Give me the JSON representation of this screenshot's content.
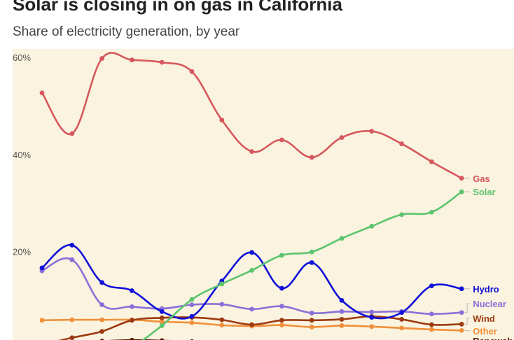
{
  "title": "Solar is closing in on gas in California",
  "subtitle": "Share of electricity generation, by year",
  "chart_data": {
    "type": "line",
    "ylim": [
      0,
      62
    ],
    "yticks": [
      {
        "value": 20,
        "label": "20%"
      },
      {
        "value": 40,
        "label": "40%"
      },
      {
        "value": 60,
        "label": "60%"
      }
    ],
    "grid": false,
    "legend": "inline labels at line ends (right)",
    "x": [
      0,
      1,
      2,
      3,
      4,
      5,
      6,
      7,
      8,
      9,
      10,
      11,
      12,
      13,
      14
    ],
    "series": [
      {
        "name": "Gas",
        "color": "#d6585e",
        "values": [
          52.7,
          44.3,
          59.8,
          59.5,
          59.0,
          57.1,
          47.1,
          40.6,
          43.0,
          39.4,
          43.5,
          44.8,
          42.2,
          38.5,
          35.1
        ]
      },
      {
        "name": "Solar",
        "color": "#5cc46e",
        "values": [
          null,
          null,
          null,
          0.0,
          4.7,
          10.1,
          13.3,
          16.1,
          19.2,
          19.9,
          22.7,
          25.2,
          27.6,
          28.1,
          32.3
        ]
      },
      {
        "name": "Hydro",
        "color": "#1010d8",
        "values": [
          16.6,
          21.3,
          13.6,
          11.9,
          7.6,
          6.6,
          13.9,
          19.8,
          12.4,
          17.7,
          9.9,
          6.4,
          7.4,
          12.9,
          12.3
        ]
      },
      {
        "name": "Nuclear",
        "color": "#8a70d8",
        "values": [
          16.0,
          18.3,
          9.0,
          8.6,
          8.2,
          9.0,
          9.1,
          8.1,
          8.7,
          7.3,
          7.6,
          7.5,
          7.6,
          7.1,
          7.4
        ]
      },
      {
        "name": "Wind",
        "color": "#9c3a10",
        "values": [
          0.7,
          2.2,
          3.5,
          5.8,
          6.3,
          6.4,
          5.9,
          4.9,
          5.8,
          5.8,
          6.0,
          6.6,
          6.0,
          4.9,
          5.0
        ]
      },
      {
        "name": "Other",
        "color": "#f0903a",
        "values": [
          5.8,
          5.9,
          5.9,
          5.9,
          5.5,
          5.3,
          4.8,
          4.6,
          4.8,
          4.4,
          4.7,
          4.5,
          4.2,
          3.9,
          3.7
        ]
      },
      {
        "name": "Renewab...",
        "color": "#5a1a00",
        "values": [
          0.7,
          1.3,
          1.5,
          1.7,
          1.6,
          1.4,
          1.1,
          0.8,
          0.9,
          0.7,
          0.6,
          0.3,
          0.1,
          0.0,
          0.0
        ]
      }
    ]
  }
}
